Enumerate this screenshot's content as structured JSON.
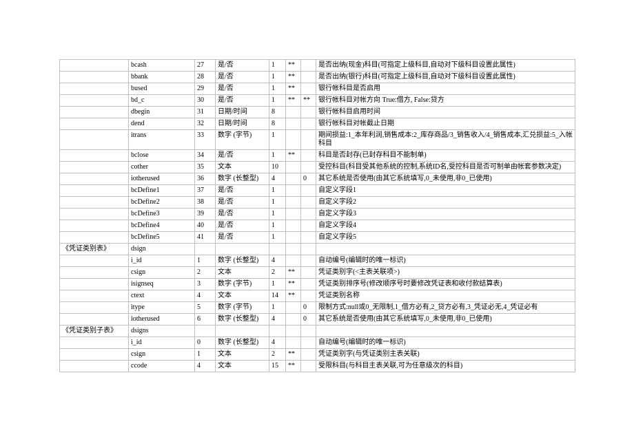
{
  "rows": [
    {
      "c1": "",
      "c2": "bcash",
      "c3": "27",
      "c4": "是/否",
      "c5": "1",
      "c6": "**",
      "c7": "",
      "c8": "是否出纳(现金)科目(可指定上级科目,自动对下级科目设置此属性)"
    },
    {
      "c1": "",
      "c2": "bbank",
      "c3": "28",
      "c4": "是/否",
      "c5": "1",
      "c6": "**",
      "c7": "",
      "c8": "是否出纳(银行)科目(可指定上级科目,自动对下级科目设置此属性)"
    },
    {
      "c1": "",
      "c2": "bused",
      "c3": "29",
      "c4": "是/否",
      "c5": "1",
      "c6": "**",
      "c7": "",
      "c8": "银行帐科目是否启用"
    },
    {
      "c1": "",
      "c2": "bd_c",
      "c3": "30",
      "c4": "是/否",
      "c5": "1",
      "c6": "**",
      "c7": "**",
      "c8": "银行帐科目对帐方向 True:借方, False:贷方"
    },
    {
      "c1": "",
      "c2": "dbegin",
      "c3": "31",
      "c4": "日期/时间",
      "c5": "8",
      "c6": "",
      "c7": "",
      "c8": "银行帐科目启用时间"
    },
    {
      "c1": "",
      "c2": "dend",
      "c3": "32",
      "c4": "日期/时间",
      "c5": "8",
      "c6": "",
      "c7": "",
      "c8": "银行帐科目对帐截止日期"
    },
    {
      "c1": "",
      "c2": "itrans",
      "c3": "33",
      "c4": "数字 (字节)",
      "c5": "1",
      "c6": "",
      "c7": "",
      "c8": "期间损益:1_本年利润,销售成本:2_库存商品/3_销售收入/4_销售成本,汇兑损益:5_入帐科目"
    },
    {
      "c1": "",
      "c2": "bclose",
      "c3": "34",
      "c4": "是/否",
      "c5": "1",
      "c6": "**",
      "c7": "",
      "c8": "科目是否封存(已封存科目不能制单)"
    },
    {
      "c1": "",
      "c2": "cother",
      "c3": "35",
      "c4": "文本",
      "c5": "10",
      "c6": "",
      "c7": "",
      "c8": "受控科目(科目受其他系统的控制,系统ID名,受控科目是否可制单由帐套参数决定)"
    },
    {
      "c1": "",
      "c2": "iotherused",
      "c3": "36",
      "c4": "数字 (长整型)",
      "c5": "4",
      "c6": "",
      "c7": "0",
      "c8": "其它系统是否使用(由其它系统填写,0_未使用,非0_已使用)"
    },
    {
      "c1": "",
      "c2": "bcDefine1",
      "c3": "37",
      "c4": "是/否",
      "c5": "1",
      "c6": "",
      "c7": "",
      "c8": "自定义字段1"
    },
    {
      "c1": "",
      "c2": "bcDefine2",
      "c3": "38",
      "c4": "是/否",
      "c5": "1",
      "c6": "",
      "c7": "",
      "c8": "自定义字段2"
    },
    {
      "c1": "",
      "c2": "bcDefine3",
      "c3": "39",
      "c4": "是/否",
      "c5": "1",
      "c6": "",
      "c7": "",
      "c8": "自定义字段3"
    },
    {
      "c1": "",
      "c2": "bcDefine4",
      "c3": "40",
      "c4": "是/否",
      "c5": "1",
      "c6": "",
      "c7": "",
      "c8": "自定义字段4"
    },
    {
      "c1": "",
      "c2": "bcDefine5",
      "c3": "41",
      "c4": "是/否",
      "c5": "1",
      "c6": "",
      "c7": "",
      "c8": "自定义字段5"
    },
    {
      "c1": "《凭证类别表》",
      "c2": "dsign",
      "c3": "",
      "c4": "",
      "c5": "",
      "c6": "",
      "c7": "",
      "c8": ""
    },
    {
      "c1": "",
      "c2": "i_id",
      "c3": "1",
      "c4": "数字 (长整型)",
      "c5": "4",
      "c6": "",
      "c7": "",
      "c8": "自动编号(编辑时的唯一标识)"
    },
    {
      "c1": "",
      "c2": "csign",
      "c3": "2",
      "c4": "文本",
      "c5": "2",
      "c6": "**",
      "c7": "",
      "c8": "凭证类别字(<主表关联项>)"
    },
    {
      "c1": "",
      "c2": "isignseq",
      "c3": "3",
      "c4": "数字 (字节)",
      "c5": "1",
      "c6": "**",
      "c7": "",
      "c8": "凭证类别排序号(修改顺序号时要修改凭证表和收付款结算表)"
    },
    {
      "c1": "",
      "c2": "ctext",
      "c3": "4",
      "c4": "文本",
      "c5": "14",
      "c6": "**",
      "c7": "",
      "c8": "凭证类别名称"
    },
    {
      "c1": "",
      "c2": "itype",
      "c3": "5",
      "c4": "数字 (字节)",
      "c5": "1",
      "c6": "",
      "c7": "0",
      "c8": "限制方式:null或0_无限制,1_借方必有,2_贷方必有,3_凭证必无,4_凭证必有"
    },
    {
      "c1": "",
      "c2": "iotherused",
      "c3": "6",
      "c4": "数字 (长整型)",
      "c5": "4",
      "c6": "",
      "c7": "0",
      "c8": "其它系统是否使用(由其它系统填写,0_未使用,非0_已使用)"
    },
    {
      "c1": "《凭证类别子表》",
      "c2": "dsigns",
      "c3": "",
      "c4": "",
      "c5": "",
      "c6": "",
      "c7": "",
      "c8": ""
    },
    {
      "c1": "",
      "c2": "i_id",
      "c3": "0",
      "c4": "数字 (长整型)",
      "c5": "4",
      "c6": "",
      "c7": "",
      "c8": "自动编号(编辑时的唯一标识)"
    },
    {
      "c1": "",
      "c2": "csign",
      "c3": "1",
      "c4": "文本",
      "c5": "2",
      "c6": "**",
      "c7": "",
      "c8": "凭证类别字(与凭证类别主表关联)"
    },
    {
      "c1": "",
      "c2": "ccode",
      "c3": "4",
      "c4": "文本",
      "c5": "15",
      "c6": "**",
      "c7": "",
      "c8": "受限科目(与科目主表关联,可为任意级次的科目)"
    }
  ]
}
